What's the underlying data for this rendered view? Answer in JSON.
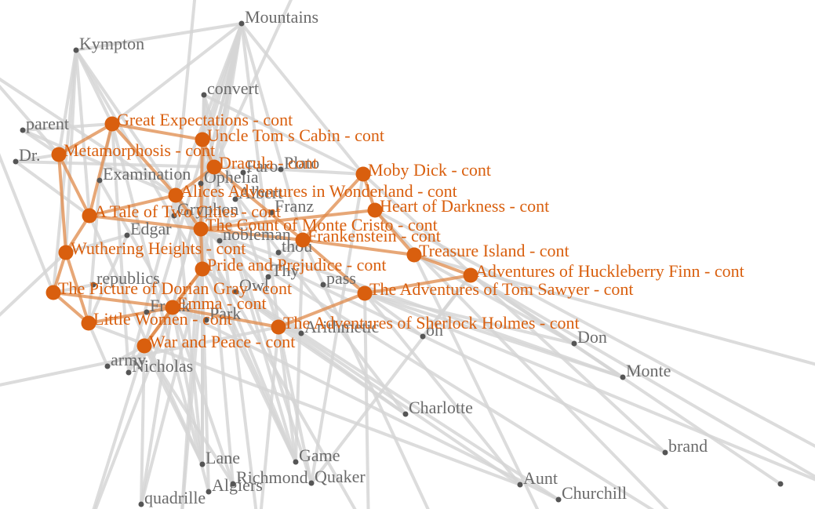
{
  "colors": {
    "book": "#d95f0e",
    "word": "#6b6b6b",
    "edge": "#d6d6d6",
    "book_edge": "#e08a4a"
  },
  "words": [
    {
      "id": "mountains",
      "label": "Mountains"
    },
    {
      "id": "kympton",
      "label": "Kympton"
    },
    {
      "id": "convert",
      "label": "convert"
    },
    {
      "id": "parent",
      "label": "parent"
    },
    {
      "id": "dr",
      "label": "Dr."
    },
    {
      "id": "examination",
      "label": "Examination"
    },
    {
      "id": "ophelia",
      "label": "Ophelia"
    },
    {
      "id": "plato",
      "label": "Plato"
    },
    {
      "id": "faro",
      "label": "Faro"
    },
    {
      "id": "albert",
      "label": "Albert"
    },
    {
      "id": "franz",
      "label": "Franz"
    },
    {
      "id": "gryphon",
      "label": "Gryphon"
    },
    {
      "id": "edgar",
      "label": "Edgar"
    },
    {
      "id": "nobleman",
      "label": "nobleman"
    },
    {
      "id": "thou",
      "label": "thou"
    },
    {
      "id": "thy",
      "label": "Thy"
    },
    {
      "id": "republics",
      "label": "republics"
    },
    {
      "id": "owl",
      "label": "Owl"
    },
    {
      "id": "pass",
      "label": "pass"
    },
    {
      "id": "frank",
      "label": "Frank"
    },
    {
      "id": "park",
      "label": "Park"
    },
    {
      "id": "arithmetic",
      "label": "Arithmetic"
    },
    {
      "id": "oh",
      "label": "oh"
    },
    {
      "id": "don",
      "label": "Don"
    },
    {
      "id": "army",
      "label": "army"
    },
    {
      "id": "nicholas",
      "label": "Nicholas"
    },
    {
      "id": "monte",
      "label": "Monte"
    },
    {
      "id": "charlotte",
      "label": "Charlotte"
    },
    {
      "id": "brand",
      "label": "brand"
    },
    {
      "id": "lane",
      "label": "Lane"
    },
    {
      "id": "game",
      "label": "Game"
    },
    {
      "id": "algiers",
      "label": "Algiers"
    },
    {
      "id": "richmond",
      "label": "Richmond"
    },
    {
      "id": "quaker",
      "label": "Quaker"
    },
    {
      "id": "aunt",
      "label": "Aunt"
    },
    {
      "id": "churchill",
      "label": "Churchill"
    },
    {
      "id": "quadrille",
      "label": "quadrille"
    },
    {
      "id": "unlabeled1",
      "label": ""
    }
  ],
  "books": [
    {
      "id": "great_expectations",
      "label": "Great Expectations - cont"
    },
    {
      "id": "uncle_tom",
      "label": "Uncle Tom s Cabin - cont"
    },
    {
      "id": "metamorphosis",
      "label": "Metamorphosis - cont"
    },
    {
      "id": "dracula",
      "label": "Dracula - cont"
    },
    {
      "id": "moby_dick",
      "label": "Moby Dick - cont"
    },
    {
      "id": "alice",
      "label": "Alices Adventures in Wonderland - cont"
    },
    {
      "id": "tale_two_cities",
      "label": "A Tale of Two Cities - cont"
    },
    {
      "id": "heart_darkness",
      "label": "Heart of Darkness - cont"
    },
    {
      "id": "monte_cristo",
      "label": "The Count of Monte Cristo - cont"
    },
    {
      "id": "frankenstein",
      "label": "Frankenstein - cont"
    },
    {
      "id": "wuthering",
      "label": "Wuthering Heights - cont"
    },
    {
      "id": "treasure_island",
      "label": "Treasure Island - cont"
    },
    {
      "id": "pride",
      "label": "Pride and Prejudice - cont"
    },
    {
      "id": "huck_finn",
      "label": "Adventures of Huckleberry Finn - cont"
    },
    {
      "id": "dorian_gray",
      "label": "The Picture of Dorian Gray - cont"
    },
    {
      "id": "tom_sawyer",
      "label": "The Adventures of Tom Sawyer - cont"
    },
    {
      "id": "emma",
      "label": "Emma - cont"
    },
    {
      "id": "little_women",
      "label": "Little Women - cont"
    },
    {
      "id": "sherlock",
      "label": "The Adventures of Sherlock Holmes - cont"
    },
    {
      "id": "war_peace",
      "label": "War and Peace - cont"
    }
  ]
}
